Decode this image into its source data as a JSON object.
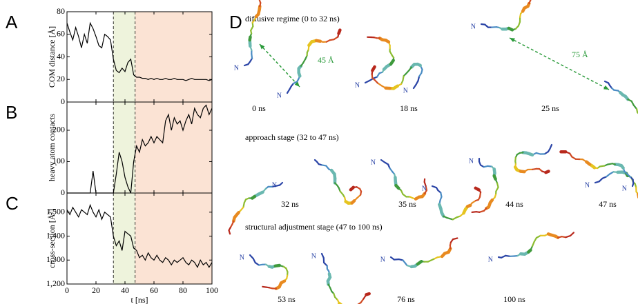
{
  "chart_data": [
    {
      "type": "line",
      "panel": "A",
      "ylabel": "COM distance [Å]",
      "x": [
        0,
        2,
        4,
        6,
        8,
        10,
        12,
        14,
        16,
        18,
        20,
        22,
        24,
        26,
        28,
        30,
        32,
        34,
        36,
        38,
        40,
        42,
        44,
        46,
        48,
        50,
        52,
        54,
        56,
        58,
        60,
        62,
        64,
        66,
        68,
        70,
        72,
        74,
        76,
        78,
        80,
        82,
        84,
        86,
        88,
        90,
        92,
        94,
        96,
        98,
        100
      ],
      "values": [
        70,
        62,
        55,
        66,
        58,
        48,
        60,
        52,
        70,
        65,
        58,
        50,
        48,
        60,
        58,
        55,
        38,
        28,
        26,
        30,
        27,
        35,
        38,
        24,
        22,
        22,
        21,
        21,
        20,
        21,
        20,
        21,
        20,
        20,
        21,
        20,
        20,
        21,
        20,
        20,
        20,
        19,
        20,
        21,
        20,
        20,
        20,
        20,
        20,
        19,
        20
      ],
      "color": "#000000",
      "xlim": [
        0,
        100
      ],
      "xticks": [
        0,
        20,
        40,
        60,
        80,
        100
      ],
      "xtick_labels": false,
      "ylim": [
        0,
        80
      ],
      "yticks": [
        0,
        20,
        40,
        60,
        80
      ],
      "regions": [
        {
          "start": 32,
          "end": 47,
          "color": "#eef3dc"
        },
        {
          "start": 47,
          "end": 100,
          "color": "#fbe3d4"
        }
      ]
    },
    {
      "type": "line",
      "panel": "B",
      "ylabel": "heavy atom contacts",
      "x": [
        0,
        2,
        4,
        6,
        8,
        10,
        12,
        14,
        16,
        18,
        20,
        22,
        24,
        26,
        28,
        30,
        32,
        34,
        36,
        38,
        40,
        42,
        44,
        46,
        48,
        50,
        52,
        54,
        56,
        58,
        60,
        62,
        64,
        66,
        68,
        70,
        72,
        74,
        76,
        78,
        80,
        82,
        84,
        86,
        88,
        90,
        92,
        94,
        96,
        98,
        100
      ],
      "values": [
        0,
        0,
        0,
        0,
        0,
        0,
        0,
        0,
        0,
        70,
        0,
        0,
        0,
        0,
        0,
        0,
        0,
        60,
        130,
        100,
        50,
        20,
        0,
        100,
        150,
        130,
        170,
        150,
        160,
        180,
        160,
        180,
        170,
        160,
        230,
        250,
        200,
        240,
        220,
        230,
        200,
        230,
        250,
        220,
        270,
        250,
        240,
        270,
        280,
        250,
        270
      ],
      "color": "#000000",
      "xlim": [
        0,
        100
      ],
      "xticks": [
        0,
        20,
        40,
        60,
        80,
        100
      ],
      "xtick_labels": false,
      "ylim": [
        0,
        290
      ],
      "yticks": [
        0,
        100,
        200
      ],
      "regions": [
        {
          "start": 32,
          "end": 47,
          "color": "#eef3dc"
        },
        {
          "start": 47,
          "end": 100,
          "color": "#fbe3d4"
        }
      ]
    },
    {
      "type": "line",
      "panel": "C",
      "ylabel": "cross-section [Å²]",
      "xlabel": "t [ns]",
      "x": [
        0,
        2,
        4,
        6,
        8,
        10,
        12,
        14,
        16,
        18,
        20,
        22,
        24,
        26,
        28,
        30,
        32,
        34,
        36,
        38,
        40,
        42,
        44,
        46,
        48,
        50,
        52,
        54,
        56,
        58,
        60,
        62,
        64,
        66,
        68,
        70,
        72,
        74,
        76,
        78,
        80,
        82,
        84,
        86,
        88,
        90,
        92,
        94,
        96,
        98,
        100
      ],
      "values": [
        1510,
        1490,
        1520,
        1500,
        1480,
        1510,
        1500,
        1490,
        1530,
        1500,
        1480,
        1510,
        1470,
        1500,
        1490,
        1480,
        1400,
        1360,
        1380,
        1340,
        1420,
        1410,
        1400,
        1350,
        1340,
        1310,
        1320,
        1300,
        1330,
        1310,
        1300,
        1320,
        1300,
        1290,
        1310,
        1300,
        1280,
        1300,
        1290,
        1300,
        1310,
        1290,
        1280,
        1300,
        1290,
        1270,
        1300,
        1280,
        1290,
        1270,
        1290
      ],
      "color": "#000000",
      "xlim": [
        0,
        100
      ],
      "xticks": [
        0,
        20,
        40,
        60,
        80,
        100
      ],
      "xtick_labels": true,
      "ylim": [
        1200,
        1580
      ],
      "yticks": [
        {
          "value": 1200,
          "label": "1,200"
        },
        {
          "value": 1300,
          "label": "1,300"
        },
        {
          "value": 1400,
          "label": "1,400"
        },
        {
          "value": 1500,
          "label": "1,500"
        }
      ],
      "regions": [
        {
          "start": 32,
          "end": 47,
          "color": "#eef3dc"
        },
        {
          "start": 47,
          "end": 100,
          "color": "#fbe3d4"
        }
      ]
    }
  ],
  "panel_d": {
    "letter": "D",
    "sections": [
      {
        "title": "diffusive regime (0 to 32 ns)",
        "snapshots": [
          {
            "time": "0 ns",
            "labels": [
              "N",
              "N"
            ],
            "distance": "45 Å"
          },
          {
            "time": "18 ns",
            "labels": [
              "N",
              "N"
            ]
          },
          {
            "time": "25 ns",
            "labels": [
              "N"
            ],
            "distance": "75 Å"
          }
        ]
      },
      {
        "title": "approach stage (32 to 47 ns)",
        "snapshots": [
          {
            "time": "32 ns",
            "labels": [
              "N"
            ]
          },
          {
            "time": "35 ns",
            "labels": [
              "N",
              "N"
            ]
          },
          {
            "time": "44 ns",
            "labels": [
              "N"
            ]
          },
          {
            "time": "47 ns",
            "labels": [
              "N",
              "N"
            ]
          }
        ]
      },
      {
        "title": "structural adjustment stage (47 to 100 ns)",
        "snapshots": [
          {
            "time": "53 ns",
            "labels": [
              "N",
              "N"
            ]
          },
          {
            "time": "76 ns",
            "labels": [
              "N"
            ]
          },
          {
            "time": "100 ns",
            "labels": [
              "N"
            ]
          }
        ]
      }
    ]
  }
}
